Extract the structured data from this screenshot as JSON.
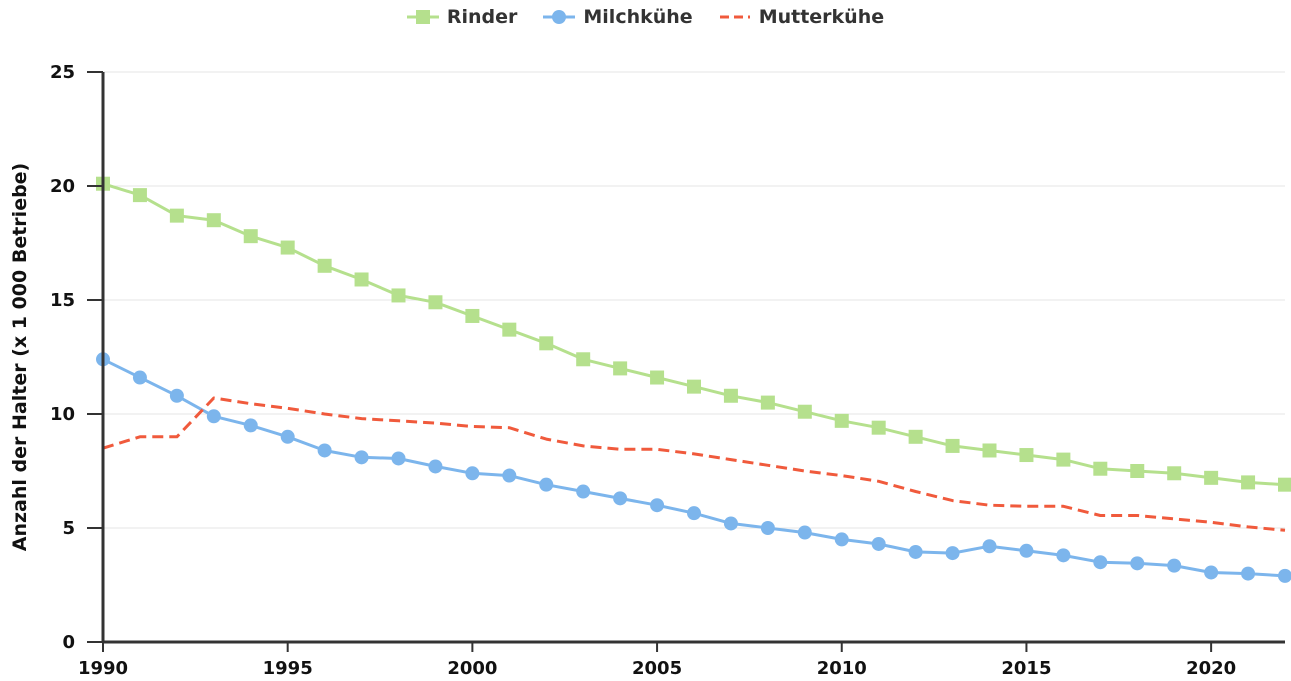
{
  "chart_data": {
    "type": "line",
    "xlabel": "",
    "ylabel": "Anzahl der Halter (x 1 000 Betriebe)",
    "xlim": [
      1990,
      2022
    ],
    "ylim": [
      0,
      25
    ],
    "xticks": [
      "1990",
      "1995",
      "2000",
      "2005",
      "2010",
      "2015",
      "2020"
    ],
    "yticks": [
      "0",
      "5",
      "10",
      "15",
      "20",
      "25"
    ],
    "grid": "horizontal",
    "legend_position": "top-center",
    "x": [
      1990,
      1991,
      1992,
      1993,
      1994,
      1995,
      1996,
      1997,
      1998,
      1999,
      2000,
      2001,
      2002,
      2003,
      2004,
      2005,
      2006,
      2007,
      2008,
      2009,
      2010,
      2011,
      2012,
      2013,
      2014,
      2015,
      2016,
      2017,
      2018,
      2019,
      2020,
      2021,
      2022
    ],
    "series": [
      {
        "name": "Rinder",
        "color": "#b5e08d",
        "marker": "square",
        "dashed": false,
        "values": [
          20.1,
          19.6,
          18.7,
          18.5,
          17.8,
          17.3,
          16.5,
          15.9,
          15.2,
          14.9,
          14.3,
          13.7,
          13.1,
          12.4,
          12.0,
          11.6,
          11.2,
          10.8,
          10.5,
          10.1,
          9.7,
          9.4,
          9.0,
          8.6,
          8.4,
          8.2,
          8.0,
          7.6,
          7.5,
          7.4,
          7.2,
          7.0,
          6.9
        ]
      },
      {
        "name": "Milchkühe",
        "color": "#7cb5ec",
        "marker": "circle",
        "dashed": false,
        "values": [
          12.4,
          11.6,
          10.8,
          9.9,
          9.5,
          9.0,
          8.4,
          8.1,
          8.05,
          7.7,
          7.4,
          7.3,
          6.9,
          6.6,
          6.3,
          6.0,
          5.65,
          5.2,
          5.0,
          4.8,
          4.5,
          4.3,
          3.95,
          3.9,
          4.2,
          4.0,
          3.8,
          3.5,
          3.45,
          3.35,
          3.05,
          3.0,
          2.9
        ]
      },
      {
        "name": "Mutterkühe",
        "color": "#f05a3c",
        "marker": "none",
        "dashed": true,
        "values": [
          8.5,
          9.0,
          9.0,
          10.7,
          10.45,
          10.25,
          10.0,
          9.8,
          9.7,
          9.6,
          9.45,
          9.4,
          8.9,
          8.6,
          8.45,
          8.45,
          8.25,
          8.0,
          7.75,
          7.5,
          7.3,
          7.05,
          6.6,
          6.2,
          6.0,
          5.95,
          5.95,
          5.55,
          5.55,
          5.4,
          5.25,
          5.05,
          4.9
        ]
      }
    ]
  }
}
